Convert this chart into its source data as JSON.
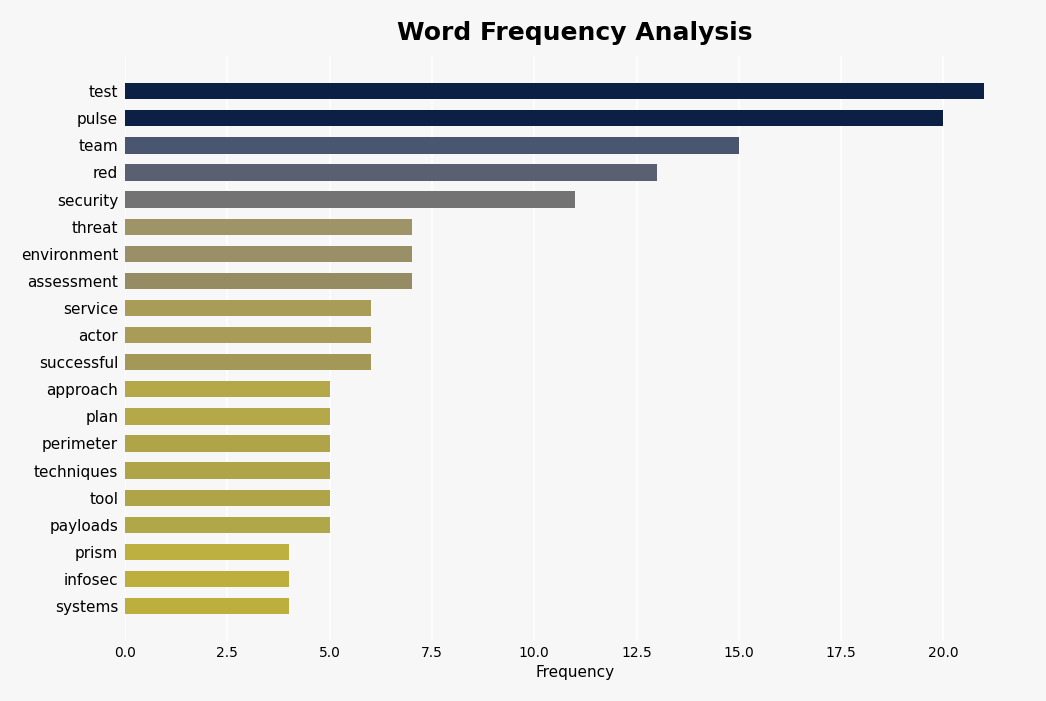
{
  "title": "Word Frequency Analysis",
  "categories": [
    "test",
    "pulse",
    "team",
    "red",
    "security",
    "threat",
    "environment",
    "assessment",
    "service",
    "actor",
    "successful",
    "approach",
    "plan",
    "perimeter",
    "techniques",
    "tool",
    "payloads",
    "prism",
    "infosec",
    "systems"
  ],
  "values": [
    21,
    20,
    15,
    13,
    11,
    7,
    7,
    7,
    6,
    6,
    6,
    5,
    5,
    5,
    5,
    5,
    5,
    4,
    4,
    4
  ],
  "colors": [
    "#0c1f45",
    "#0c1f45",
    "#4a5570",
    "#5a5f72",
    "#737373",
    "#9e9468",
    "#9a9068",
    "#968c64",
    "#a89c58",
    "#a89c58",
    "#a49858",
    "#b4a848",
    "#b4a848",
    "#b0a448",
    "#b0a448",
    "#b0a448",
    "#b0a848",
    "#bdb040",
    "#bcaf3e",
    "#bcaf3e"
  ],
  "xlabel": "Frequency",
  "xlim": [
    0,
    22
  ],
  "background_color": "#f7f7f7",
  "plot_bg_color": "#f7f7f7",
  "title_fontsize": 18,
  "label_fontsize": 11,
  "tick_fontsize": 11,
  "bar_height": 0.6,
  "figsize": [
    10.46,
    7.01
  ],
  "dpi": 100
}
